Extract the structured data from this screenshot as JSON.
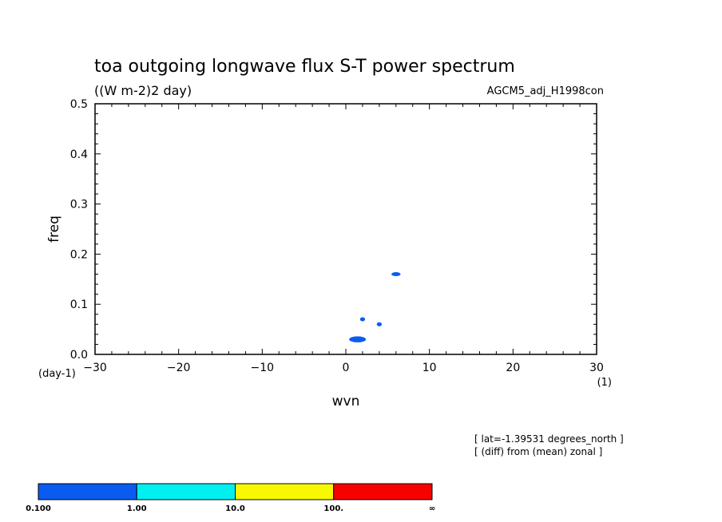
{
  "chart_data": {
    "type": "heatmap",
    "title": "toa outgoing longwave flux S-T power spectrum",
    "units": "((W m-2)2 day)",
    "run_name": "AGCM5_adj_H1998con",
    "xlabel": "wvn",
    "ylabel": "freq",
    "x_unit": "(1)",
    "y_unit": "(day-1)",
    "xlim": [
      -30,
      30
    ],
    "ylim": [
      0,
      0.5
    ],
    "x_ticks": [
      "−30",
      "−20",
      "−10",
      "0",
      "10",
      "20",
      "30"
    ],
    "x_tick_values": [
      -30,
      -20,
      -10,
      0,
      10,
      20,
      30
    ],
    "y_ticks": [
      "0.0",
      "0.1",
      "0.2",
      "0.3",
      "0.4",
      "0.5"
    ],
    "y_tick_values": [
      0,
      0.1,
      0.2,
      0.3,
      0.4,
      0.5
    ],
    "info_lines": [
      "[ lat=-1.39531 degrees_north ]",
      "[ (diff) from (mean) zonal ]"
    ],
    "colorbar": {
      "levels": [
        "0.100",
        "1.00",
        "10.0",
        "100.",
        "∞"
      ],
      "colors": [
        "#0a5cf0",
        "#00f0f0",
        "#f8f800",
        "#f80000"
      ]
    },
    "blobs": [
      {
        "wvn": 1.4,
        "freq": 0.03,
        "color": "#0a5cf0",
        "level": "0.100-1.00",
        "extent_wvn": [
          0.5,
          2.5
        ],
        "extent_freq": [
          0.024,
          0.036
        ]
      },
      {
        "wvn": 2.0,
        "freq": 0.07,
        "color": "#0a5cf0",
        "level": "0.100-1.00",
        "extent_wvn": [
          1.7,
          2.3
        ],
        "extent_freq": [
          0.066,
          0.074
        ]
      },
      {
        "wvn": 4.0,
        "freq": 0.06,
        "color": "#0a5cf0",
        "level": "0.100-1.00",
        "extent_wvn": [
          3.7,
          4.3
        ],
        "extent_freq": [
          0.056,
          0.064
        ]
      },
      {
        "wvn": 6.0,
        "freq": 0.16,
        "color": "#0a5cf0",
        "level": "0.100-1.00",
        "extent_wvn": [
          5.5,
          6.6
        ],
        "extent_freq": [
          0.156,
          0.164
        ]
      }
    ]
  }
}
